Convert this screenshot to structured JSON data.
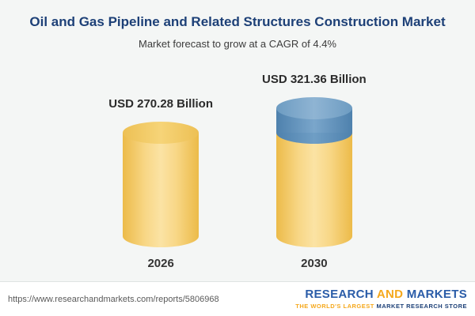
{
  "header": {
    "title": "Oil and Gas Pipeline and Related Structures Construction Market",
    "subtitle": "Market forecast to grow at a CAGR of 4.4%"
  },
  "chart_data": {
    "type": "bar",
    "style": "cylinder",
    "categories": [
      "2026",
      "2030"
    ],
    "values": [
      270.28,
      321.36
    ],
    "value_labels": [
      "USD 270.28 Billion",
      "USD 321.36 Billion"
    ],
    "unit": "USD Billion",
    "title": "Oil and Gas Pipeline and Related Structures Construction Market",
    "subtitle": "Market forecast to grow at a CAGR of 4.4%",
    "cagr_percent": 4.4,
    "colors": {
      "bar": "#f3cc6e",
      "growth_cap": "#5d8fba"
    },
    "legend_position": "none",
    "grid": false
  },
  "footer": {
    "url": "https://www.researchandmarkets.com/reports/5806968",
    "logo": {
      "word1": "RESEARCH",
      "word2": "AND",
      "word3": "MARKETS",
      "tagline_left": "THE WORLD'S LARGEST",
      "tagline_right": "MARKET RESEARCH STORE"
    }
  }
}
